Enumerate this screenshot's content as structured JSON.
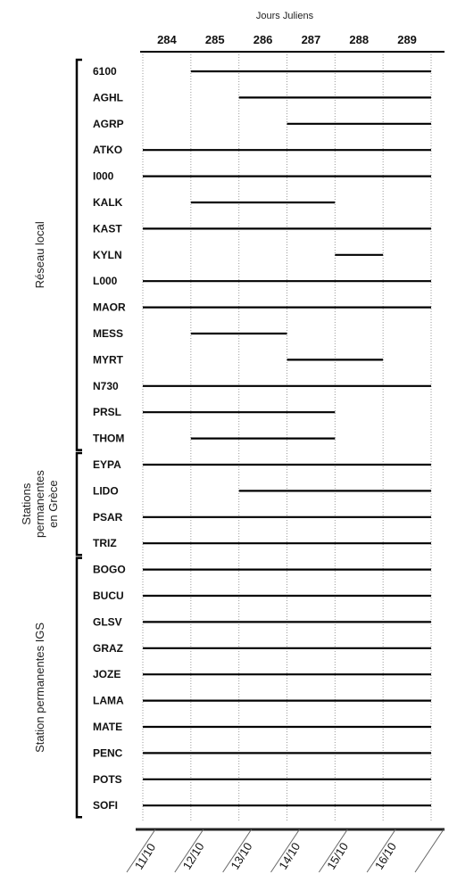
{
  "chart_data": {
    "type": "gantt",
    "x_title": "Jours Juliens",
    "x_ticks": [
      "284",
      "285",
      "286",
      "287",
      "288",
      "289"
    ],
    "date_labels": [
      "11/10",
      "12/10",
      "13/10",
      "14/10",
      "15/10",
      "16/10"
    ],
    "xlim": [
      283,
      289
    ],
    "groups": [
      {
        "label_lines": [
          "Réseau local"
        ],
        "stations": [
          {
            "name": "6100",
            "start": 284,
            "end": 289
          },
          {
            "name": "AGHL",
            "start": 285,
            "end": 289
          },
          {
            "name": "AGRP",
            "start": 286,
            "end": 289
          },
          {
            "name": "ATKO",
            "start": 283,
            "end": 289
          },
          {
            "name": "I000",
            "start": 283,
            "end": 289
          },
          {
            "name": "KALK",
            "start": 284,
            "end": 287
          },
          {
            "name": "KAST",
            "start": 283,
            "end": 289
          },
          {
            "name": "KYLN",
            "start": 287,
            "end": 288
          },
          {
            "name": "L000",
            "start": 283,
            "end": 289
          },
          {
            "name": "MAOR",
            "start": 283,
            "end": 289
          },
          {
            "name": "MESS",
            "start": 284,
            "end": 286
          },
          {
            "name": "MYRT",
            "start": 286,
            "end": 288
          },
          {
            "name": "N730",
            "start": 283,
            "end": 289
          },
          {
            "name": "PRSL",
            "start": 283,
            "end": 287
          },
          {
            "name": "THOM",
            "start": 284,
            "end": 287
          }
        ]
      },
      {
        "label_lines": [
          "Stations",
          "permanentes",
          "en Grèce"
        ],
        "stations": [
          {
            "name": "EYPA",
            "start": 283,
            "end": 289
          },
          {
            "name": "LIDO",
            "start": 285,
            "end": 289
          },
          {
            "name": "PSAR",
            "start": 283,
            "end": 289
          },
          {
            "name": "TRIZ",
            "start": 283,
            "end": 289
          }
        ]
      },
      {
        "label_lines": [
          "Station permanentes IGS"
        ],
        "stations": [
          {
            "name": "BOGO",
            "start": 283,
            "end": 289
          },
          {
            "name": "BUCU",
            "start": 283,
            "end": 289
          },
          {
            "name": "GLSV",
            "start": 283,
            "end": 289
          },
          {
            "name": "GRAZ",
            "start": 283,
            "end": 289
          },
          {
            "name": "JOZE",
            "start": 283,
            "end": 289
          },
          {
            "name": "LAMA",
            "start": 283,
            "end": 289
          },
          {
            "name": "MATE",
            "start": 283,
            "end": 289
          },
          {
            "name": "PENC",
            "start": 283,
            "end": 289
          },
          {
            "name": "POTS",
            "start": 283,
            "end": 289
          },
          {
            "name": "SOFI",
            "start": 283,
            "end": 289
          }
        ]
      }
    ]
  }
}
